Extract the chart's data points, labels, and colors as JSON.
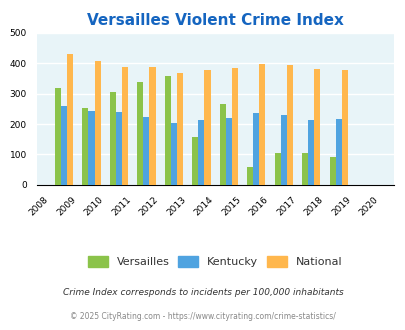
{
  "title": "Versailles Violent Crime Index",
  "years": [
    2009,
    2010,
    2011,
    2012,
    2013,
    2014,
    2015,
    2016,
    2017,
    2018,
    2019
  ],
  "bar_centers": [
    2008.5,
    2009.5,
    2010.5,
    2011.5,
    2012.5,
    2013.5,
    2014.5,
    2015.5,
    2016.5,
    2017.5,
    2018.5
  ],
  "versailles": [
    320,
    252,
    305,
    337,
    360,
    157,
    265,
    60,
    105,
    105,
    90
  ],
  "kentucky": [
    260,
    243,
    240,
    222,
    202,
    215,
    220,
    235,
    229,
    215,
    217
  ],
  "national": [
    432,
    407,
    388,
    387,
    368,
    378,
    384,
    397,
    394,
    381,
    379
  ],
  "bar_colors": {
    "versailles": "#8bc34a",
    "kentucky": "#4fa3e0",
    "national": "#ffb74d"
  },
  "xlim": [
    2007.5,
    2020.5
  ],
  "ylim": [
    0,
    500
  ],
  "yticks": [
    0,
    100,
    200,
    300,
    400,
    500
  ],
  "xticks": [
    2008,
    2009,
    2010,
    2011,
    2012,
    2013,
    2014,
    2015,
    2016,
    2017,
    2018,
    2019,
    2020
  ],
  "bg_color": "#e8f4f8",
  "grid_color": "#ffffff",
  "title_color": "#1565c0",
  "bar_width": 0.22,
  "footnote1": "Crime Index corresponds to incidents per 100,000 inhabitants",
  "footnote2": "© 2025 CityRating.com - https://www.cityrating.com/crime-statistics/",
  "footnote1_color": "#333333",
  "footnote2_color": "#888888"
}
